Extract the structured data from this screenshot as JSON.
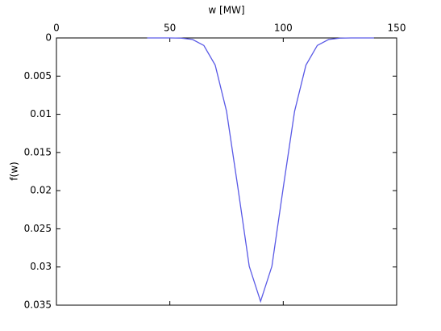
{
  "chart_data": {
    "type": "line",
    "x_label": "w [MW]",
    "y_label": "f(w)",
    "x": [
      40,
      45,
      50,
      55,
      60,
      65,
      70,
      75,
      80,
      85,
      90,
      95,
      100,
      105,
      110,
      115,
      120,
      125,
      130,
      135,
      140
    ],
    "series": [
      {
        "name": "f(w)",
        "color": "#5a5ae6",
        "values": [
          0,
          0,
          0,
          3e-05,
          0.0002,
          0.00099,
          0.00356,
          0.0096,
          0.0196,
          0.0299,
          0.0345,
          0.0299,
          0.0196,
          0.0096,
          0.00356,
          0.00099,
          0.0002,
          3e-05,
          0,
          0,
          0
        ]
      }
    ],
    "xlim": [
      0,
      150
    ],
    "xticks": [
      0,
      50,
      100,
      150
    ],
    "ylim": [
      0,
      0.035
    ],
    "yticks": [
      0,
      0.005,
      0.01,
      0.015,
      0.02,
      0.025,
      0.03,
      0.035
    ],
    "y_reversed": true,
    "x_axis_position": "top",
    "grid": false
  }
}
